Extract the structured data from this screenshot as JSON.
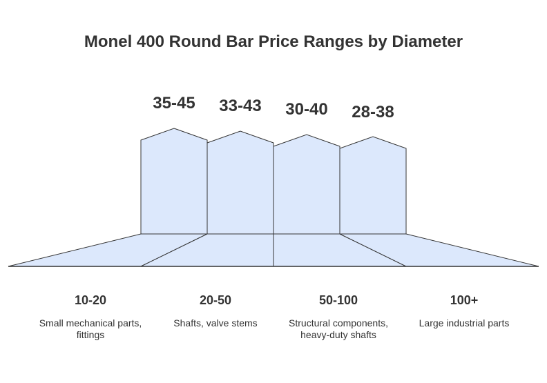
{
  "title": "Monel 400 Round Bar Price Ranges by Diameter",
  "colors": {
    "fill": "#dce8fc",
    "stroke": "#333333",
    "text": "#333333"
  },
  "prices": [
    "35-45",
    "33-43",
    "30-40",
    "28-38"
  ],
  "diameters": [
    {
      "range": "10-20",
      "description": "Small mechanical parts, fittings"
    },
    {
      "range": "20-50",
      "description": "Shafts, valve stems"
    },
    {
      "range": "50-100",
      "description": "Structural components, heavy-duty shafts"
    },
    {
      "range": "100+",
      "description": "Large industrial parts"
    }
  ]
}
